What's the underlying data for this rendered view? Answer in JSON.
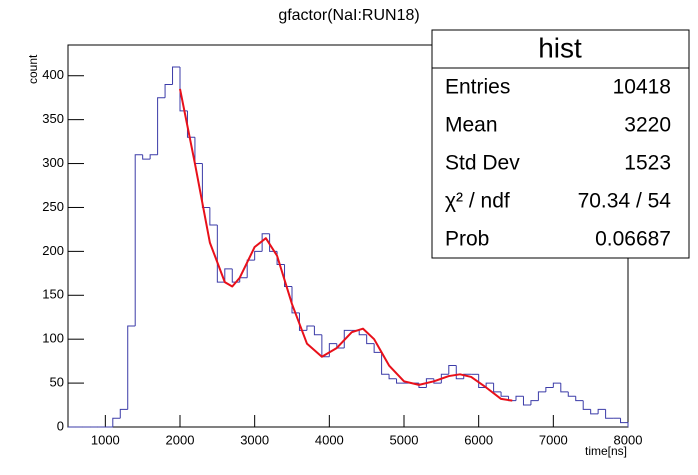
{
  "chart_data": {
    "type": "histogram",
    "title": "gfactor(NaI:RUN18)",
    "x_label": "time[ns]",
    "y_label": "count",
    "color": "#3b3ba8",
    "bins": [
      500,
      600,
      700,
      800,
      900,
      1000,
      1100,
      1200,
      1300,
      1400,
      1500,
      1600,
      1700,
      1800,
      1900,
      2000,
      2100,
      2200,
      2300,
      2400,
      2500,
      2600,
      2700,
      2800,
      2900,
      3000,
      3100,
      3200,
      3300,
      3400,
      3500,
      3600,
      3700,
      3800,
      3900,
      4000,
      4100,
      4200,
      4300,
      4400,
      4500,
      4600,
      4700,
      4800,
      4900,
      5000,
      5100,
      5200,
      5300,
      5400,
      5500,
      5600,
      5700,
      5800,
      5900,
      6000,
      6100,
      6200,
      6300,
      6400,
      6500,
      6600,
      6700,
      6800,
      6900,
      7000,
      7100,
      7200,
      7300,
      7400,
      7500,
      7600,
      7700,
      7800,
      7900,
      8000
    ],
    "values": [
      0,
      0,
      0,
      0,
      0,
      0,
      10,
      20,
      115,
      310,
      305,
      310,
      375,
      390,
      410,
      360,
      330,
      300,
      250,
      230,
      165,
      180,
      165,
      170,
      190,
      200,
      220,
      200,
      185,
      160,
      130,
      110,
      115,
      105,
      80,
      95,
      90,
      110,
      110,
      105,
      95,
      85,
      60,
      55,
      50,
      50,
      50,
      45,
      55,
      50,
      60,
      70,
      55,
      60,
      60,
      45,
      50,
      40,
      35,
      30,
      35,
      25,
      30,
      40,
      45,
      50,
      40,
      35,
      30,
      20,
      15,
      20,
      10,
      10,
      5
    ],
    "fit": {
      "color": "#e8101a",
      "x": [
        2000,
        2200,
        2400,
        2600,
        2700,
        2800,
        3000,
        3150,
        3300,
        3500,
        3700,
        3900,
        4100,
        4300,
        4450,
        4600,
        4800,
        5000,
        5200,
        5400,
        5600,
        5750,
        5900,
        6100,
        6300,
        6450
      ],
      "values": [
        385,
        300,
        210,
        165,
        160,
        170,
        205,
        215,
        195,
        140,
        95,
        80,
        90,
        108,
        112,
        100,
        70,
        52,
        48,
        52,
        58,
        60,
        57,
        45,
        32,
        30
      ]
    },
    "xlim": [
      500,
      8000
    ],
    "ylim": [
      0,
      435
    ],
    "xticks": [
      1000,
      2000,
      3000,
      4000,
      5000,
      6000,
      7000,
      8000
    ],
    "yticks": [
      0,
      50,
      100,
      150,
      200,
      250,
      300,
      350,
      400
    ],
    "stats": {
      "title": "hist",
      "rows": [
        [
          "Entries",
          "10418"
        ],
        [
          "Mean",
          "3220"
        ],
        [
          "Std Dev",
          "1523"
        ],
        [
          "χ² / ndf",
          "70.34 / 54"
        ],
        [
          "Prob",
          "0.06687"
        ]
      ]
    }
  }
}
